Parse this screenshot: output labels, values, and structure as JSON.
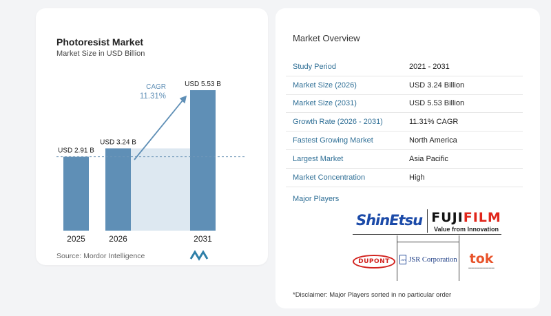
{
  "left_panel": {
    "title": "Photoresist Market",
    "subtitle": "Market Size in USD Billion",
    "source": "Source:  Mordor Intelligence"
  },
  "chart_data": {
    "type": "bar",
    "title": "Photoresist Market",
    "ylabel": "Market Size in USD Billion",
    "categories": [
      "2025",
      "2026",
      "2031"
    ],
    "values": [
      2.91,
      3.24,
      5.53
    ],
    "data_labels": [
      "USD 2.91 B",
      "USD 3.24 B",
      "USD 5.53 B"
    ],
    "cagr_label": "CAGR",
    "cagr_value": "11.31%",
    "colors": {
      "bar": "#5f8fb6",
      "shade": "#dde8f1",
      "arrow": "#5f8fb6",
      "cagr": "#5f8fb6"
    },
    "ylim": [
      0,
      5.53
    ],
    "grid": false
  },
  "overview": {
    "title": "Market Overview",
    "rows": [
      {
        "label": "Study Period",
        "value": "2021 - 2031"
      },
      {
        "label": "Market Size (2026)",
        "value": "USD 3.24 Billion"
      },
      {
        "label": "Market Size (2031)",
        "value": "USD 5.53 Billion"
      },
      {
        "label": "Growth Rate (2026 - 2031)",
        "value": "11.31% CAGR"
      },
      {
        "label": "Fastest Growing Market",
        "value": "North America"
      },
      {
        "label": "Largest Market",
        "value": "Asia Pacific"
      },
      {
        "label": "Market Concentration",
        "value": "High"
      }
    ],
    "players_label": "Major Players",
    "players": {
      "shinetsu": "ShinEtsu",
      "fujifilm_a": "FUJI",
      "fujifilm_b": "FILM",
      "fujifilm_tag": "Value from Innovation",
      "dupont": "DUPONT",
      "jsr": "JSR Corporation",
      "tok": "tok"
    },
    "disclaimer": "*Disclaimer: Major Players sorted in no particular order"
  }
}
